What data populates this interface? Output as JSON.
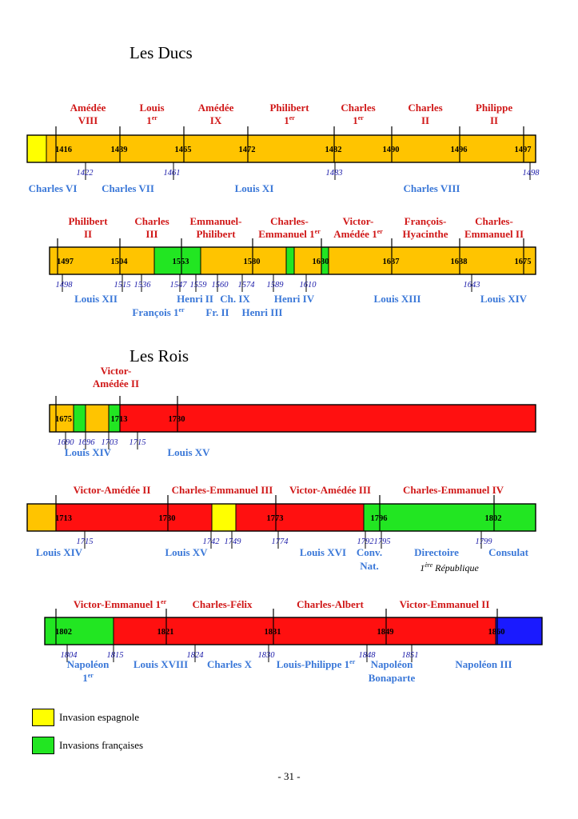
{
  "sections": {
    "ducs_title": "Les Ducs",
    "rois_title": "Les Rois"
  },
  "colors": {
    "spanish": "#ffff00",
    "french": "#22e622",
    "default_duc": "#ffc400",
    "kingdom": "#ff1010",
    "unified": "#1a1aff"
  },
  "bands": [
    {
      "id": "ducs-1",
      "segments": [
        {
          "from": 1400,
          "to": 1416,
          "color": "#ffff00"
        },
        {
          "from": 1416,
          "to": 1497,
          "color": "#ffc400"
        }
      ],
      "ticks": [
        {
          "year": 1416,
          "label": "1416"
        },
        {
          "year": 1439,
          "label": "1439"
        },
        {
          "year": 1465,
          "label": "1465"
        },
        {
          "year": 1472,
          "label": "1472"
        },
        {
          "year": 1482,
          "label": "1482"
        },
        {
          "year": 1490,
          "label": "1490"
        },
        {
          "year": 1496,
          "label": "1496"
        },
        {
          "year": 1497,
          "label": "1497"
        }
      ],
      "rulers": [
        {
          "text": "Amédée",
          "text2": "VIII",
          "sup": ""
        },
        {
          "text": "Louis",
          "text2": "1",
          "sup": "er"
        },
        {
          "text": "Amédée",
          "text2": "IX",
          "sup": ""
        },
        {
          "text": "Philibert",
          "text2": "1",
          "sup": "er"
        },
        {
          "text": "Charles",
          "text2": "1",
          "sup": "er"
        },
        {
          "text": "Charles",
          "text2": "II",
          "sup": ""
        },
        {
          "text": "Philippe",
          "text2": "II",
          "sup": ""
        }
      ],
      "french_ticks": [
        {
          "year": 1422,
          "label": "1422"
        },
        {
          "year": 1461,
          "label": "1461"
        },
        {
          "year": 1483,
          "label": "1483"
        },
        {
          "year": 1498,
          "label": "1498"
        }
      ],
      "french_kings": [
        {
          "text": "Charles VI"
        },
        {
          "text": "Charles VII"
        },
        {
          "text": "Louis XI"
        },
        {
          "text": "Charles VIII"
        }
      ]
    },
    {
      "id": "ducs-2",
      "segments": [
        {
          "from": 1497,
          "to": 1536,
          "color": "#ffc400"
        },
        {
          "from": 1536,
          "to": 1559,
          "color": "#22e622"
        },
        {
          "from": 1559,
          "to": 1588,
          "color": "#ffc400"
        },
        {
          "from": 1588,
          "to": 1601,
          "color": "#22e622"
        },
        {
          "from": 1601,
          "to": 1628,
          "color": "#ffc400"
        },
        {
          "from": 1628,
          "to": 1631,
          "color": "#22e622"
        },
        {
          "from": 1631,
          "to": 1675,
          "color": "#ffc400"
        }
      ],
      "ticks": [
        {
          "year": 1497,
          "label": "1497"
        },
        {
          "year": 1504,
          "label": "1504"
        },
        {
          "year": 1553,
          "label": "1553"
        },
        {
          "year": 1580,
          "label": "1580"
        },
        {
          "year": 1630,
          "label": "1630"
        },
        {
          "year": 1637,
          "label": "1637"
        },
        {
          "year": 1638,
          "label": "1638"
        },
        {
          "year": 1675,
          "label": "1675"
        }
      ],
      "rulers": [
        {
          "text": "Philibert",
          "text2": "II",
          "sup": ""
        },
        {
          "text": "Charles",
          "text2": "III",
          "sup": ""
        },
        {
          "text": "Emmanuel-",
          "text2": "Philibert",
          "sup": ""
        },
        {
          "text": "Charles-",
          "text2": "Emmanuel 1",
          "sup": "er"
        },
        {
          "text": "Victor-",
          "text2": "Amédée 1",
          "sup": "er"
        },
        {
          "text": "François-",
          "text2": "Hyacinthe",
          "sup": ""
        },
        {
          "text": "Charles-",
          "text2": "Emmanuel II",
          "sup": ""
        }
      ],
      "french_ticks": [
        {
          "year": 1498,
          "label": "1498"
        },
        {
          "year": 1515,
          "label": "1515"
        },
        {
          "year": 1536,
          "label": "1536"
        },
        {
          "year": 1547,
          "label": "1547"
        },
        {
          "year": 1559,
          "label": "1559"
        },
        {
          "year": 1560,
          "label": "1560"
        },
        {
          "year": 1574,
          "label": "1574"
        },
        {
          "year": 1589,
          "label": "1589"
        },
        {
          "year": 1610,
          "label": "1610"
        },
        {
          "year": 1643,
          "label": "1643"
        }
      ],
      "french_kings": [
        {
          "text": "Louis XII"
        },
        {
          "text": "François 1",
          "sup": "er"
        },
        {
          "text": "Henri II"
        },
        {
          "text": "Ch. IX"
        },
        {
          "text": "Fr. II"
        },
        {
          "text": "Henri III"
        },
        {
          "text": "Henri IV"
        },
        {
          "text": "Louis XIII"
        },
        {
          "text": "Louis XIV"
        }
      ]
    },
    {
      "id": "rois-1",
      "segments": [
        {
          "from": 1675,
          "to": 1690,
          "color": "#ffc400"
        },
        {
          "from": 1690,
          "to": 1696,
          "color": "#22e622"
        },
        {
          "from": 1696,
          "to": 1708,
          "color": "#ffc400"
        },
        {
          "from": 1708,
          "to": 1713,
          "color": "#22e622"
        },
        {
          "from": 1713,
          "to": 1802,
          "color": "#ff1010"
        }
      ],
      "ticks": [
        {
          "year": 1675,
          "label": "1675"
        },
        {
          "year": 1713,
          "label": "1713"
        },
        {
          "year": 1730,
          "label": "1730"
        }
      ],
      "rulers": [
        {
          "text": "Victor-",
          "text2": "Amédée II",
          "sup": ""
        }
      ],
      "french_ticks": [
        {
          "year": 1690,
          "label": "1690"
        },
        {
          "year": 1696,
          "label": "1696"
        },
        {
          "year": 1703,
          "label": "1703"
        },
        {
          "year": 1715,
          "label": "1715"
        }
      ],
      "french_kings": [
        {
          "text": "Louis XIV"
        },
        {
          "text": "Louis XV"
        }
      ]
    },
    {
      "id": "rois-2",
      "segments": [
        {
          "from": 1700,
          "to": 1713,
          "color": "#ffc400"
        },
        {
          "from": 1713,
          "to": 1742,
          "color": "#ff1010"
        },
        {
          "from": 1742,
          "to": 1749,
          "color": "#ffff00"
        },
        {
          "from": 1749,
          "to": 1792,
          "color": "#ff1010"
        },
        {
          "from": 1792,
          "to": 1815,
          "color": "#22e622"
        }
      ],
      "ticks": [
        {
          "year": 1713,
          "label": "1713"
        },
        {
          "year": 1730,
          "label": "1730"
        },
        {
          "year": 1773,
          "label": "1773"
        },
        {
          "year": 1796,
          "label": "1796"
        },
        {
          "year": 1802,
          "label": "1802"
        }
      ],
      "rulers": [
        {
          "text": "Victor-Amédée II"
        },
        {
          "text": "Charles-Emmanuel III"
        },
        {
          "text": "Victor-Amédée III"
        },
        {
          "text": "Charles-Emmanuel IV"
        }
      ],
      "french_ticks": [
        {
          "year": 1715,
          "label": "1715"
        },
        {
          "year": 1742,
          "label": "1742"
        },
        {
          "year": 1749,
          "label": "1749"
        },
        {
          "year": 1774,
          "label": "1774"
        },
        {
          "year": 1792,
          "label": "1792"
        },
        {
          "year": 1795,
          "label": "1795"
        },
        {
          "year": 1799,
          "label": "1799"
        }
      ],
      "french_kings": [
        {
          "text": "Louis XIV"
        },
        {
          "text": "Louis XV"
        },
        {
          "text": "Louis XVI"
        },
        {
          "text": "Conv.",
          "text2": "Nat."
        },
        {
          "text": "Directoire"
        },
        {
          "text": "Consulat"
        }
      ],
      "note": {
        "text": "1",
        "sup": "ère",
        "rest": " République"
      }
    },
    {
      "id": "rois-3",
      "segments": [
        {
          "from": 1802,
          "to": 1815,
          "color": "#22e622"
        },
        {
          "from": 1815,
          "to": 1860,
          "color": "#ff1010"
        },
        {
          "from": 1860,
          "to": 1881,
          "color": "#1a1aff"
        }
      ],
      "ticks": [
        {
          "year": 1802,
          "label": "1802"
        },
        {
          "year": 1821,
          "label": "1821"
        },
        {
          "year": 1831,
          "label": "1831"
        },
        {
          "year": 1849,
          "label": "1849"
        },
        {
          "year": 1860,
          "label": "1860"
        }
      ],
      "rulers": [
        {
          "text": "Victor-Emmanuel 1",
          "sup": "er"
        },
        {
          "text": "Charles-Félix"
        },
        {
          "text": "Charles-Albert"
        },
        {
          "text": "Victor-Emmanuel II"
        }
      ],
      "french_ticks": [
        {
          "year": 1804,
          "label": "1804"
        },
        {
          "year": 1815,
          "label": "1815"
        },
        {
          "year": 1824,
          "label": "1824"
        },
        {
          "year": 1830,
          "label": "1830"
        },
        {
          "year": 1848,
          "label": "1848"
        },
        {
          "year": 1851,
          "label": "1851"
        }
      ],
      "french_kings": [
        {
          "text": "Napoléon",
          "text2": "1",
          "sup": "er"
        },
        {
          "text": "Louis XVIII"
        },
        {
          "text": "Charles X"
        },
        {
          "text": "Louis-Philippe 1",
          "sup": "er"
        },
        {
          "text": "Napoléon",
          "text2": "Bonaparte"
        },
        {
          "text": "Napoléon III"
        }
      ]
    }
  ],
  "legend": [
    {
      "label": "Invasion espagnole",
      "color": "#ffff00"
    },
    {
      "label": "Invasions françaises",
      "color": "#22e622"
    }
  ],
  "page_number": "- 31 -"
}
